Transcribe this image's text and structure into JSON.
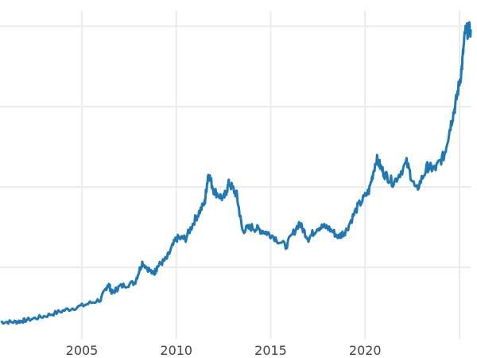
{
  "chart_data": {
    "type": "line",
    "title": "",
    "xlabel": "",
    "ylabel": "",
    "x_ticks": [
      "2005",
      "2010",
      "2015",
      "2020"
    ],
    "x_tick_values": [
      2005,
      2010,
      2015,
      2020
    ],
    "x_gridlines": [
      2005,
      2010,
      2015,
      2020,
      2025
    ],
    "y_gridlines": [
      1,
      2,
      3,
      4
    ],
    "y_tick_labels_visible": false,
    "xlim": [
      2000.66,
      2025.66
    ],
    "ylim": [
      0,
      4.3
    ],
    "grid": true,
    "line_color": "#1f77b4",
    "series": [
      {
        "x": [
          2000.7,
          2001.5,
          2002,
          2003,
          2004,
          2005,
          2006,
          2006.4,
          2006.6,
          2007,
          2007.8,
          2008.2,
          2008.8,
          2009,
          2009.5,
          2010,
          2010.5,
          2011,
          2011.5,
          2011.7,
          2012,
          2012.5,
          2012.8,
          2013.2,
          2013.5,
          2014,
          2014.5,
          2015,
          2015.8,
          2016.5,
          2017,
          2017.5,
          2018,
          2018.6,
          2019,
          2019.6,
          2020.2,
          2020.6,
          2021,
          2021.5,
          2022.2,
          2022.7,
          2023.3,
          2023.7,
          2024.2,
          2024.5,
          2024.8,
          2025.1,
          2025.3,
          2025.6
        ],
        "y": [
          0.32,
          0.32,
          0.34,
          0.39,
          0.46,
          0.52,
          0.6,
          0.8,
          0.68,
          0.76,
          0.81,
          1.06,
          0.91,
          1.01,
          1.11,
          1.36,
          1.36,
          1.6,
          1.8,
          2.17,
          1.95,
          1.85,
          2.05,
          1.9,
          1.46,
          1.5,
          1.46,
          1.41,
          1.26,
          1.55,
          1.36,
          1.5,
          1.5,
          1.38,
          1.46,
          1.75,
          1.95,
          2.35,
          2.17,
          2.05,
          2.3,
          1.95,
          2.25,
          2.22,
          2.4,
          2.74,
          3.04,
          3.44,
          3.93,
          3.96
        ]
      }
    ]
  }
}
